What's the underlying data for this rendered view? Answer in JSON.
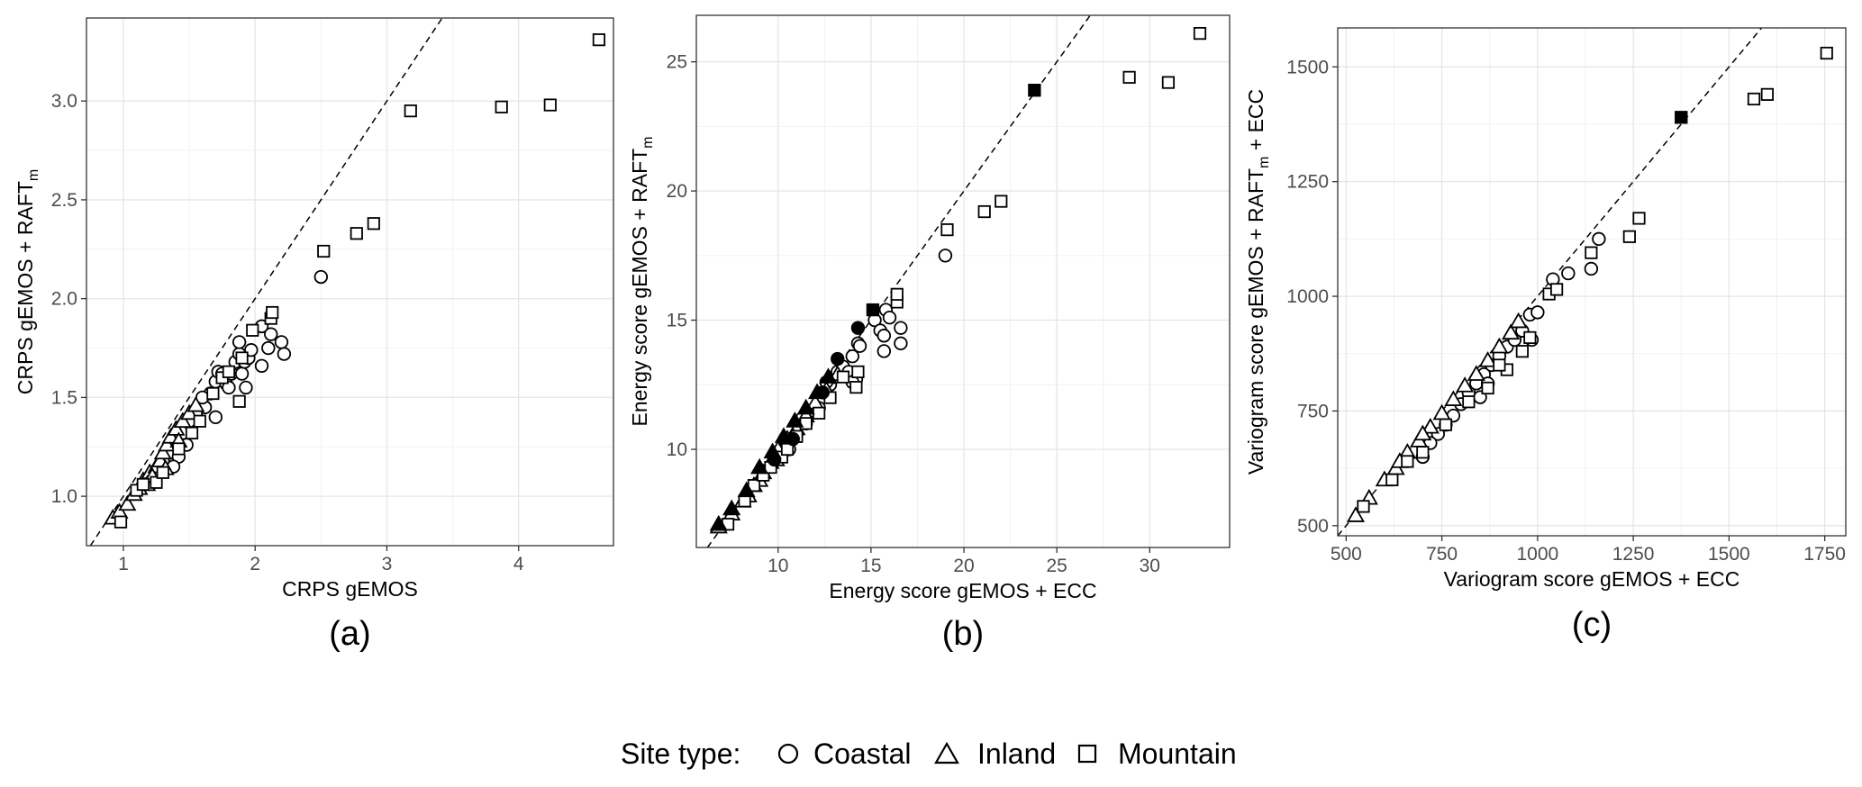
{
  "chart_data": [
    {
      "type": "scatter",
      "panel_label": "(a)",
      "xlabel": "CRPS gEMOS",
      "ylabel": {
        "main": "CRPS gEMOS + RAFT",
        "sub": "m"
      },
      "xlim": [
        0.72,
        4.72
      ],
      "ylim": [
        0.75,
        3.42
      ],
      "xticks": [
        1,
        2,
        3,
        4
      ],
      "xtick_labels": [
        "1",
        "2",
        "3",
        "4"
      ],
      "yticks": [
        1.0,
        1.5,
        2.0,
        2.5,
        3.0
      ],
      "ytick_labels": [
        "1.0",
        "1.5",
        "2.0",
        "2.5",
        "3.0"
      ],
      "grid": true,
      "reference_line": "y = x",
      "series": [
        {
          "name": "Coastal",
          "marker": "circle",
          "points": [
            [
              1.62,
              1.45
            ],
            [
              1.66,
              1.52
            ],
            [
              1.7,
              1.58
            ],
            [
              1.72,
              1.63
            ],
            [
              1.75,
              1.62
            ],
            [
              1.78,
              1.57
            ],
            [
              1.8,
              1.55
            ],
            [
              1.82,
              1.62
            ],
            [
              1.85,
              1.68
            ],
            [
              1.88,
              1.72
            ],
            [
              1.9,
              1.62
            ],
            [
              1.92,
              1.68
            ],
            [
              1.95,
              1.7
            ],
            [
              1.88,
              1.78
            ],
            [
              1.93,
              1.55
            ],
            [
              1.97,
              1.74
            ],
            [
              2.05,
              1.86
            ],
            [
              2.05,
              1.66
            ],
            [
              2.1,
              1.75
            ],
            [
              2.12,
              1.82
            ],
            [
              2.2,
              1.78
            ],
            [
              2.22,
              1.72
            ],
            [
              2.5,
              2.11
            ],
            [
              1.7,
              1.4
            ],
            [
              1.6,
              1.5
            ],
            [
              1.55,
              1.42
            ],
            [
              1.5,
              1.38
            ],
            [
              1.45,
              1.32
            ],
            [
              1.4,
              1.28
            ],
            [
              1.35,
              1.22
            ],
            [
              1.3,
              1.18
            ],
            [
              1.25,
              1.12
            ],
            [
              1.48,
              1.26
            ],
            [
              1.42,
              1.2
            ],
            [
              1.38,
              1.15
            ]
          ]
        },
        {
          "name": "Inland",
          "marker": "triangle",
          "points": [
            [
              0.92,
              0.89
            ],
            [
              0.97,
              0.92
            ],
            [
              1.03,
              0.96
            ],
            [
              1.08,
              1.01
            ],
            [
              1.12,
              1.04
            ],
            [
              1.15,
              1.08
            ],
            [
              1.2,
              1.12
            ],
            [
              1.25,
              1.15
            ],
            [
              1.28,
              1.18
            ],
            [
              1.3,
              1.22
            ],
            [
              1.33,
              1.26
            ],
            [
              1.36,
              1.3
            ],
            [
              1.4,
              1.34
            ],
            [
              1.45,
              1.38
            ],
            [
              1.5,
              1.42
            ],
            [
              1.55,
              1.46
            ],
            [
              1.18,
              1.06
            ],
            [
              1.22,
              1.1
            ],
            [
              1.32,
              1.14
            ],
            [
              1.42,
              1.28
            ]
          ]
        },
        {
          "name": "Mountain",
          "marker": "square",
          "points": [
            [
              0.98,
              0.87
            ],
            [
              1.1,
              1.03
            ],
            [
              1.15,
              1.06
            ],
            [
              1.25,
              1.07
            ],
            [
              1.3,
              1.12
            ],
            [
              1.42,
              1.24
            ],
            [
              1.52,
              1.32
            ],
            [
              1.58,
              1.38
            ],
            [
              1.75,
              1.6
            ],
            [
              1.88,
              1.48
            ],
            [
              1.9,
              1.7
            ],
            [
              1.98,
              1.84
            ],
            [
              2.12,
              1.9
            ],
            [
              2.13,
              1.93
            ],
            [
              2.52,
              2.24
            ],
            [
              2.77,
              2.33
            ],
            [
              2.9,
              2.38
            ],
            [
              3.18,
              2.95
            ],
            [
              3.87,
              2.97
            ],
            [
              4.24,
              2.98
            ],
            [
              4.61,
              3.31
            ],
            [
              1.68,
              1.52
            ],
            [
              1.8,
              1.63
            ]
          ]
        }
      ]
    },
    {
      "type": "scatter",
      "panel_label": "(b)",
      "xlabel": "Energy score gEMOS + ECC",
      "ylabel": {
        "main": "Energy score gEMOS + RAFT",
        "sub": "m"
      },
      "xlim": [
        5.6,
        34.3
      ],
      "ylim": [
        6.2,
        26.8
      ],
      "xticks": [
        10,
        15,
        20,
        25,
        30
      ],
      "xtick_labels": [
        "10",
        "15",
        "20",
        "25",
        "30"
      ],
      "yticks": [
        10,
        15,
        20,
        25
      ],
      "ytick_labels": [
        "10",
        "15",
        "20",
        "25"
      ],
      "grid": true,
      "reference_line": "y = x",
      "series": [
        {
          "name": "Coastal",
          "marker": "circle",
          "points": [
            [
              10.2,
              9.8
            ],
            [
              10.6,
              10.0
            ],
            [
              11.0,
              10.6
            ],
            [
              11.5,
              11.0
            ],
            [
              11.9,
              11.5
            ],
            [
              12.2,
              11.6
            ],
            [
              12.5,
              12.2
            ],
            [
              12.8,
              12.5
            ],
            [
              13.0,
              12.8
            ],
            [
              13.2,
              13.0
            ],
            [
              13.5,
              13.2
            ],
            [
              13.8,
              13.0
            ],
            [
              14.0,
              13.6
            ],
            [
              14.2,
              12.7
            ],
            [
              14.3,
              14.1
            ],
            [
              14.4,
              14.0
            ],
            [
              14.0,
              12.6
            ],
            [
              15.2,
              15.0
            ],
            [
              15.5,
              14.6
            ],
            [
              15.7,
              14.4
            ],
            [
              15.7,
              13.8
            ],
            [
              15.8,
              15.4
            ],
            [
              16.0,
              15.1
            ],
            [
              16.6,
              14.7
            ],
            [
              16.6,
              14.1
            ],
            [
              19.0,
              17.5
            ],
            [
              11.3,
              11.2
            ],
            [
              12.6,
              12.6
            ]
          ]
        },
        {
          "name": "Inland",
          "marker": "triangle",
          "points": [
            [
              6.8,
              7.0
            ],
            [
              7.5,
              7.5
            ],
            [
              8.1,
              8.0
            ],
            [
              8.7,
              8.6
            ],
            [
              9.2,
              9.1
            ],
            [
              9.6,
              9.5
            ],
            [
              10.0,
              10.0
            ],
            [
              10.5,
              10.4
            ],
            [
              11.0,
              10.8
            ],
            [
              11.5,
              11.3
            ],
            [
              12.0,
              11.8
            ],
            [
              12.6,
              12.3
            ],
            [
              13.2,
              12.9
            ],
            [
              8.4,
              8.2
            ],
            [
              9.0,
              8.8
            ],
            [
              9.9,
              9.6
            ],
            [
              10.8,
              10.5
            ]
          ]
        },
        {
          "name": "Mountain",
          "marker": "square",
          "points": [
            [
              7.3,
              7.1
            ],
            [
              8.2,
              8.0
            ],
            [
              8.7,
              8.6
            ],
            [
              9.2,
              9.0
            ],
            [
              9.6,
              9.3
            ],
            [
              10.2,
              9.7
            ],
            [
              10.5,
              10.0
            ],
            [
              11.0,
              10.5
            ],
            [
              11.5,
              11.0
            ],
            [
              12.2,
              11.4
            ],
            [
              12.8,
              12.0
            ],
            [
              13.5,
              12.8
            ],
            [
              14.2,
              12.4
            ],
            [
              14.3,
              13.0
            ],
            [
              15.1,
              15.4
            ],
            [
              16.4,
              15.7
            ],
            [
              16.4,
              16.0
            ],
            [
              19.1,
              18.5
            ],
            [
              21.1,
              19.2
            ],
            [
              22.0,
              19.6
            ],
            [
              23.8,
              23.9
            ],
            [
              28.9,
              24.4
            ],
            [
              31.0,
              24.2
            ],
            [
              32.7,
              26.1
            ]
          ]
        },
        {
          "name": "Coastal (filled)",
          "marker": "circle-filled",
          "points": [
            [
              9.8,
              9.6
            ],
            [
              10.8,
              10.4
            ],
            [
              12.4,
              12.2
            ],
            [
              13.2,
              13.5
            ],
            [
              14.3,
              14.7
            ]
          ]
        },
        {
          "name": "Inland (filled)",
          "marker": "triangle-filled",
          "points": [
            [
              6.8,
              7.1
            ],
            [
              7.5,
              7.7
            ],
            [
              8.3,
              8.4
            ],
            [
              9.0,
              9.3
            ],
            [
              9.7,
              9.9
            ],
            [
              10.3,
              10.5
            ],
            [
              10.9,
              11.1
            ],
            [
              11.5,
              11.6
            ],
            [
              12.1,
              12.2
            ],
            [
              12.7,
              12.8
            ]
          ]
        },
        {
          "name": "Mountain (filled)",
          "marker": "square-filled",
          "points": [
            [
              15.1,
              15.4
            ],
            [
              23.8,
              23.9
            ]
          ]
        }
      ]
    },
    {
      "type": "scatter",
      "panel_label": "(c)",
      "xlabel": "Variogram score gEMOS + ECC",
      "ylabel": {
        "main": "Variogram score gEMOS + RAFT",
        "sub": "m",
        "suffix": " + ECC"
      },
      "xlim": [
        478,
        1805
      ],
      "ylim": [
        478,
        1585
      ],
      "xticks": [
        500,
        750,
        1000,
        1250,
        1500,
        1750
      ],
      "xtick_labels": [
        "500",
        "750",
        "1000",
        "1250",
        "1500",
        "1750"
      ],
      "yticks": [
        500,
        750,
        1000,
        1250,
        1500
      ],
      "ytick_labels": [
        "500",
        "750",
        "1000",
        "1250",
        "1500"
      ],
      "grid": true,
      "reference_line": "y = x",
      "series": [
        {
          "name": "Coastal",
          "marker": "circle",
          "points": [
            [
              700,
              650
            ],
            [
              740,
              700
            ],
            [
              780,
              740
            ],
            [
              800,
              765
            ],
            [
              820,
              790
            ],
            [
              840,
              810
            ],
            [
              860,
              830
            ],
            [
              880,
              850
            ],
            [
              900,
              870
            ],
            [
              920,
              890
            ],
            [
              940,
              905
            ],
            [
              960,
              925
            ],
            [
              980,
              960
            ],
            [
              1000,
              965
            ],
            [
              985,
              905
            ],
            [
              1040,
              1037
            ],
            [
              1080,
              1050
            ],
            [
              1140,
              1060
            ],
            [
              1160,
              1125
            ],
            [
              850,
              780
            ],
            [
              870,
              810
            ],
            [
              760,
              720
            ],
            [
              720,
              680
            ]
          ]
        },
        {
          "name": "Inland",
          "marker": "triangle",
          "points": [
            [
              525,
              522
            ],
            [
              560,
              560
            ],
            [
              600,
              600
            ],
            [
              630,
              625
            ],
            [
              660,
              660
            ],
            [
              690,
              685
            ],
            [
              720,
              715
            ],
            [
              750,
              745
            ],
            [
              780,
              775
            ],
            [
              810,
              805
            ],
            [
              840,
              830
            ],
            [
              870,
              860
            ],
            [
              900,
              890
            ],
            [
              930,
              920
            ],
            [
              950,
              945
            ],
            [
              640,
              640
            ],
            [
              700,
              700
            ]
          ]
        },
        {
          "name": "Mountain",
          "marker": "square",
          "points": [
            [
              545,
              542
            ],
            [
              620,
              600
            ],
            [
              660,
              640
            ],
            [
              700,
              660
            ],
            [
              760,
              720
            ],
            [
              820,
              770
            ],
            [
              870,
              800
            ],
            [
              920,
              840
            ],
            [
              960,
              880
            ],
            [
              1030,
              1005
            ],
            [
              1050,
              1015
            ],
            [
              1140,
              1095
            ],
            [
              1240,
              1130
            ],
            [
              1265,
              1170
            ],
            [
              1375,
              1390
            ],
            [
              1565,
              1430
            ],
            [
              1600,
              1440
            ],
            [
              1755,
              1530
            ],
            [
              900,
              850
            ],
            [
              980,
              910
            ]
          ]
        },
        {
          "name": "Mountain (filled)",
          "marker": "square-filled",
          "points": [
            [
              1375,
              1390
            ]
          ]
        }
      ]
    }
  ],
  "legend": {
    "title": "Site type:",
    "items": [
      "Coastal",
      "Inland",
      "Mountain"
    ]
  }
}
